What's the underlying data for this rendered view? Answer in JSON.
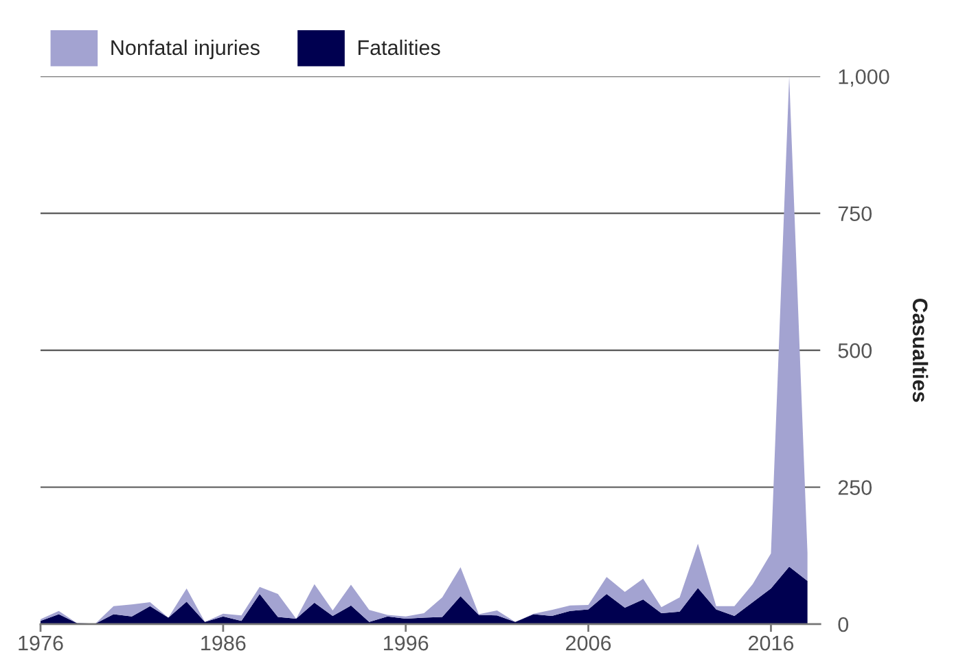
{
  "chart_data": {
    "type": "area",
    "stacked": true,
    "ylabel": "Casualties",
    "x": [
      1976,
      1977,
      1978,
      1979,
      1980,
      1981,
      1982,
      1983,
      1984,
      1985,
      1986,
      1987,
      1988,
      1989,
      1990,
      1991,
      1992,
      1993,
      1994,
      1995,
      1996,
      1997,
      1998,
      1999,
      2000,
      2001,
      2002,
      2003,
      2004,
      2005,
      2006,
      2007,
      2008,
      2009,
      2010,
      2011,
      2012,
      2013,
      2014,
      2015,
      2016,
      2017,
      2018
    ],
    "series": [
      {
        "name": "Fatalities",
        "color": "#000050",
        "values": [
          6,
          18,
          2,
          1,
          18,
          14,
          33,
          12,
          41,
          4,
          14,
          6,
          55,
          13,
          10,
          39,
          15,
          34,
          4,
          14,
          10,
          12,
          13,
          51,
          17,
          16,
          4,
          18,
          15,
          24,
          27,
          55,
          30,
          45,
          20,
          23,
          66,
          27,
          15,
          40,
          65,
          105,
          79
        ]
      },
      {
        "name": "Nonfatal injuries",
        "color": "#a3a3d1",
        "values": [
          3,
          6,
          0,
          0,
          15,
          22,
          7,
          0,
          24,
          0,
          5,
          10,
          13,
          42,
          0,
          34,
          10,
          38,
          22,
          3,
          4,
          8,
          36,
          53,
          1,
          9,
          0,
          1,
          11,
          10,
          8,
          31,
          29,
          38,
          11,
          26,
          81,
          6,
          18,
          33,
          64,
          895,
          51
        ]
      }
    ],
    "xlim": [
      1976,
      2018.7
    ],
    "xticks": [
      1976,
      1986,
      1996,
      2006,
      2016
    ],
    "ylim": [
      0,
      1000
    ],
    "yticks": [
      0,
      250,
      500,
      750,
      {
        "value": 1000,
        "label": "1,000"
      }
    ],
    "grid": "y",
    "legend": "top left"
  }
}
